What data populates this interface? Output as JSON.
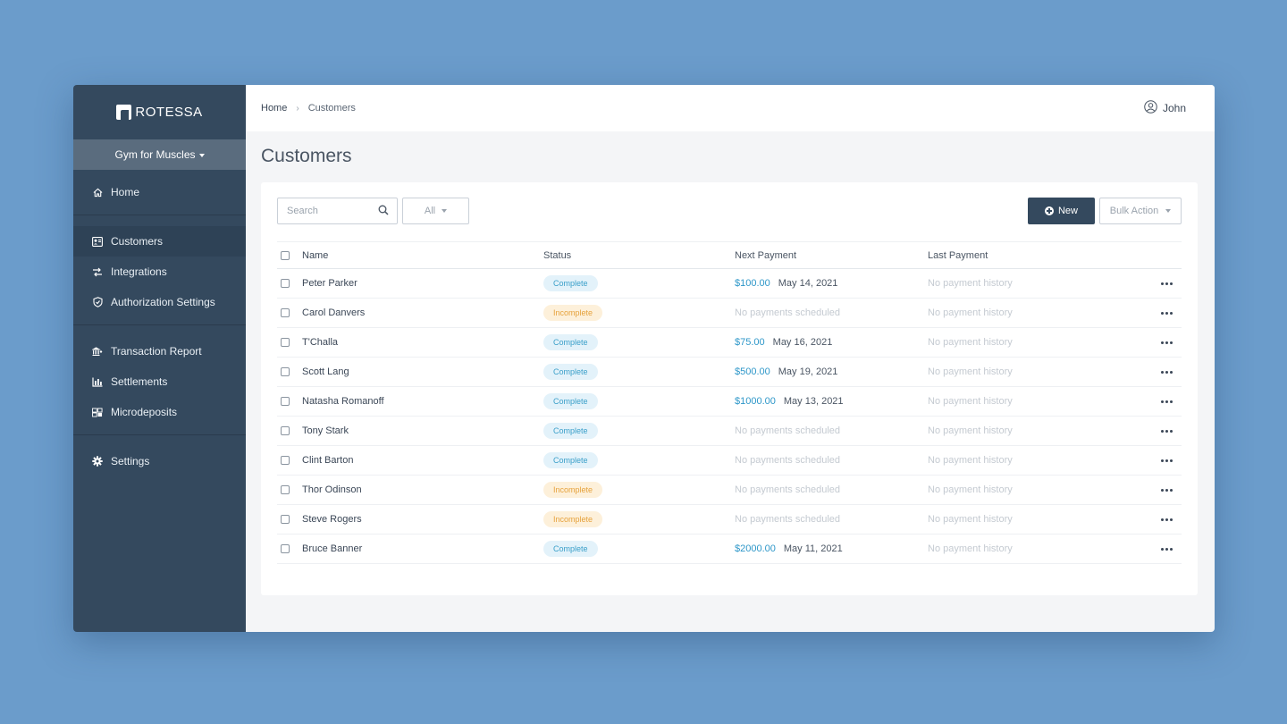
{
  "brand": {
    "logo_text": "ROTESSA"
  },
  "org_selector": {
    "label": "Gym for Muscles"
  },
  "sidebar": {
    "groups": [
      {
        "items": [
          {
            "label": "Home",
            "icon": "home-icon"
          }
        ]
      },
      {
        "items": [
          {
            "label": "Customers",
            "icon": "customers-icon",
            "active": true
          },
          {
            "label": "Integrations",
            "icon": "integrations-icon"
          },
          {
            "label": "Authorization Settings",
            "icon": "shield-icon"
          }
        ]
      },
      {
        "items": [
          {
            "label": "Transaction Report",
            "icon": "transaction-report-icon"
          },
          {
            "label": "Settlements",
            "icon": "bar-chart-icon"
          },
          {
            "label": "Microdeposits",
            "icon": "microdeposits-icon"
          }
        ]
      },
      {
        "items": [
          {
            "label": "Settings",
            "icon": "gear-icon"
          }
        ]
      }
    ]
  },
  "topbar": {
    "breadcrumb": {
      "home": "Home",
      "separator": "›",
      "current": "Customers"
    },
    "user": {
      "name": "John",
      "icon": "user-circle-icon"
    }
  },
  "page": {
    "title": "Customers"
  },
  "toolbar": {
    "search_placeholder": "Search",
    "filter_value": "All",
    "new_label": "New",
    "bulk_action_label": "Bulk Action"
  },
  "table": {
    "columns": {
      "name": "Name",
      "status": "Status",
      "next_payment": "Next Payment",
      "last_payment": "Last Payment"
    },
    "rows": [
      {
        "name": "Peter Parker",
        "status": "Complete",
        "next_amount": "$100.00",
        "next_date": "May 14, 2021",
        "next_text": "",
        "last": "No payment history"
      },
      {
        "name": "Carol Danvers",
        "status": "Incomplete",
        "next_amount": "",
        "next_date": "",
        "next_text": "No payments scheduled",
        "last": "No payment history"
      },
      {
        "name": "T'Challa",
        "status": "Complete",
        "next_amount": "$75.00",
        "next_date": "May 16, 2021",
        "next_text": "",
        "last": "No payment history"
      },
      {
        "name": "Scott Lang",
        "status": "Complete",
        "next_amount": "$500.00",
        "next_date": "May 19, 2021",
        "next_text": "",
        "last": "No payment history"
      },
      {
        "name": "Natasha Romanoff",
        "status": "Complete",
        "next_amount": "$1000.00",
        "next_date": "May 13, 2021",
        "next_text": "",
        "last": "No payment history"
      },
      {
        "name": "Tony Stark",
        "status": "Complete",
        "next_amount": "",
        "next_date": "",
        "next_text": "No payments scheduled",
        "last": "No payment history"
      },
      {
        "name": "Clint Barton",
        "status": "Complete",
        "next_amount": "",
        "next_date": "",
        "next_text": "No payments scheduled",
        "last": "No payment history"
      },
      {
        "name": "Thor Odinson",
        "status": "Incomplete",
        "next_amount": "",
        "next_date": "",
        "next_text": "No payments scheduled",
        "last": "No payment history"
      },
      {
        "name": "Steve Rogers",
        "status": "Incomplete",
        "next_amount": "",
        "next_date": "",
        "next_text": "No payments scheduled",
        "last": "No payment history"
      },
      {
        "name": "Bruce Banner",
        "status": "Complete",
        "next_amount": "$2000.00",
        "next_date": "May 11, 2021",
        "next_text": "",
        "last": "No payment history"
      }
    ]
  },
  "colors": {
    "background": "#6b9ccb",
    "sidebar": "#34495e",
    "accent_link": "#2e97c9",
    "complete_badge_bg": "#e3f2fa",
    "incomplete_badge_bg": "#fdf0da"
  }
}
